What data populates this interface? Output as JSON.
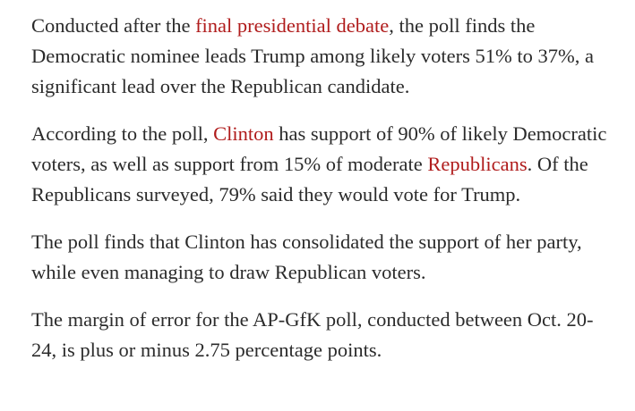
{
  "article": {
    "p1": {
      "before": "Conducted after the ",
      "link": "final presidential debate",
      "after": ", the poll finds the Democratic nominee leads Trump among likely voters 51% to 37%, a significant lead over the Republican candidate."
    },
    "p2": {
      "before": "According to the poll, ",
      "link1": "Clinton",
      "middle": " has support of 90% of likely Democratic voters, as well as support from 15% of moderate ",
      "link2": "Republicans",
      "after": ". Of the Republicans surveyed, 79% said they would vote for Trump."
    },
    "p3": {
      "text": "The poll finds that Clinton has consolidated the support of her party, while even managing to draw Republican voters."
    },
    "p4": {
      "text": "The margin of error for the AP-GfK poll, conducted between Oct. 20-24, is plus or minus 2.75 percentage points."
    }
  },
  "colors": {
    "text": "#2b2b2b",
    "link": "#b01c1c",
    "background": "#ffffff"
  }
}
